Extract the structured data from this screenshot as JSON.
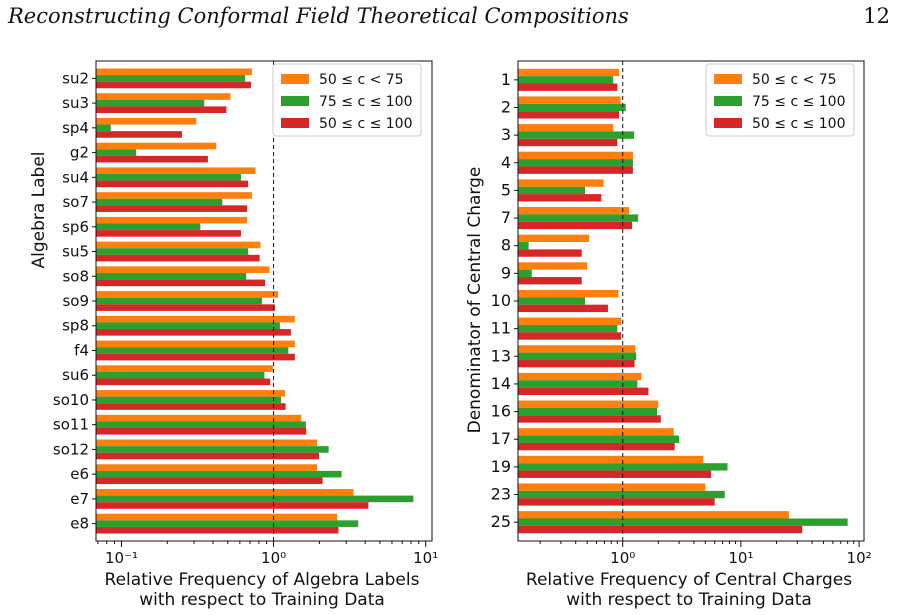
{
  "header": {
    "title": "Reconstructing Conformal Field Theoretical Compositions",
    "page_number": "12"
  },
  "colors": {
    "orange": "#ff7f0e",
    "green": "#2ca02c",
    "red": "#d62728"
  },
  "chart_data": [
    {
      "type": "bar",
      "orientation": "horizontal",
      "xscale": "log",
      "xlim": [
        0.068,
        11
      ],
      "reference_line": 1,
      "xticks": [
        0.1,
        1,
        10
      ],
      "xtick_labels": [
        "10⁻¹",
        "10⁰",
        "10¹"
      ],
      "xlabel": [
        "Relative Frequency of Algebra Labels",
        "with respect to Training Data"
      ],
      "ylabel": "Algebra Label",
      "legend_position": "upper-right",
      "categories": [
        "su2",
        "su3",
        "sp4",
        "g2",
        "su4",
        "so7",
        "sp6",
        "su5",
        "so8",
        "so9",
        "sp8",
        "f4",
        "su6",
        "so10",
        "so11",
        "so12",
        "e6",
        "e7",
        "e8"
      ],
      "series": [
        {
          "name": "50 ≤ c < 75",
          "color": "#ff7f0e",
          "values": [
            0.72,
            0.52,
            0.31,
            0.42,
            0.76,
            0.72,
            0.67,
            0.82,
            0.94,
            1.07,
            1.38,
            1.38,
            0.99,
            1.19,
            1.52,
            1.93,
            1.93,
            3.35,
            2.62
          ]
        },
        {
          "name": "75 ≤ c ≤ 100",
          "color": "#2ca02c",
          "values": [
            0.65,
            0.35,
            0.085,
            0.125,
            0.61,
            0.46,
            0.33,
            0.68,
            0.66,
            0.84,
            1.1,
            1.25,
            0.87,
            1.12,
            1.63,
            2.3,
            2.8,
            8.3,
            3.6
          ]
        },
        {
          "name": "50 ≤ c ≤ 100",
          "color": "#d62728",
          "values": [
            0.71,
            0.49,
            0.25,
            0.37,
            0.68,
            0.67,
            0.61,
            0.81,
            0.88,
            1.02,
            1.3,
            1.38,
            0.95,
            1.2,
            1.64,
            1.99,
            2.1,
            4.2,
            2.67
          ]
        }
      ]
    },
    {
      "type": "bar",
      "orientation": "horizontal",
      "xscale": "log",
      "xlim": [
        0.13,
        110
      ],
      "reference_line": 1,
      "xticks": [
        1,
        10,
        100
      ],
      "xtick_labels": [
        "10⁰",
        "10¹",
        "10²"
      ],
      "xlabel": [
        "Relative Frequency of Central Charges",
        "with respect to Training Data"
      ],
      "ylabel": "Denominator of Central Charge",
      "legend_position": "upper-right",
      "categories": [
        "1",
        "2",
        "3",
        "4",
        "5",
        "7",
        "8",
        "9",
        "10",
        "11",
        "13",
        "14",
        "16",
        "17",
        "19",
        "23",
        "25"
      ],
      "series": [
        {
          "name": "50 ≤ c < 75",
          "color": "#ff7f0e",
          "values": [
            0.93,
            0.96,
            0.83,
            1.22,
            0.69,
            1.13,
            0.52,
            0.5,
            0.92,
            0.97,
            1.28,
            1.44,
            2.0,
            2.7,
            4.8,
            5.0,
            25.5
          ]
        },
        {
          "name": "75 ≤ c ≤ 100",
          "color": "#2ca02c",
          "values": [
            0.83,
            1.06,
            1.25,
            1.22,
            0.48,
            1.35,
            0.16,
            0.17,
            0.48,
            0.9,
            1.3,
            1.33,
            1.95,
            3.0,
            7.7,
            7.3,
            80.0
          ]
        },
        {
          "name": "50 ≤ c ≤ 100",
          "color": "#d62728",
          "values": [
            0.9,
            0.93,
            0.9,
            1.22,
            0.66,
            1.2,
            0.45,
            0.45,
            0.75,
            0.97,
            1.26,
            1.65,
            2.1,
            2.75,
            5.6,
            6.0,
            33.0
          ]
        }
      ]
    }
  ]
}
